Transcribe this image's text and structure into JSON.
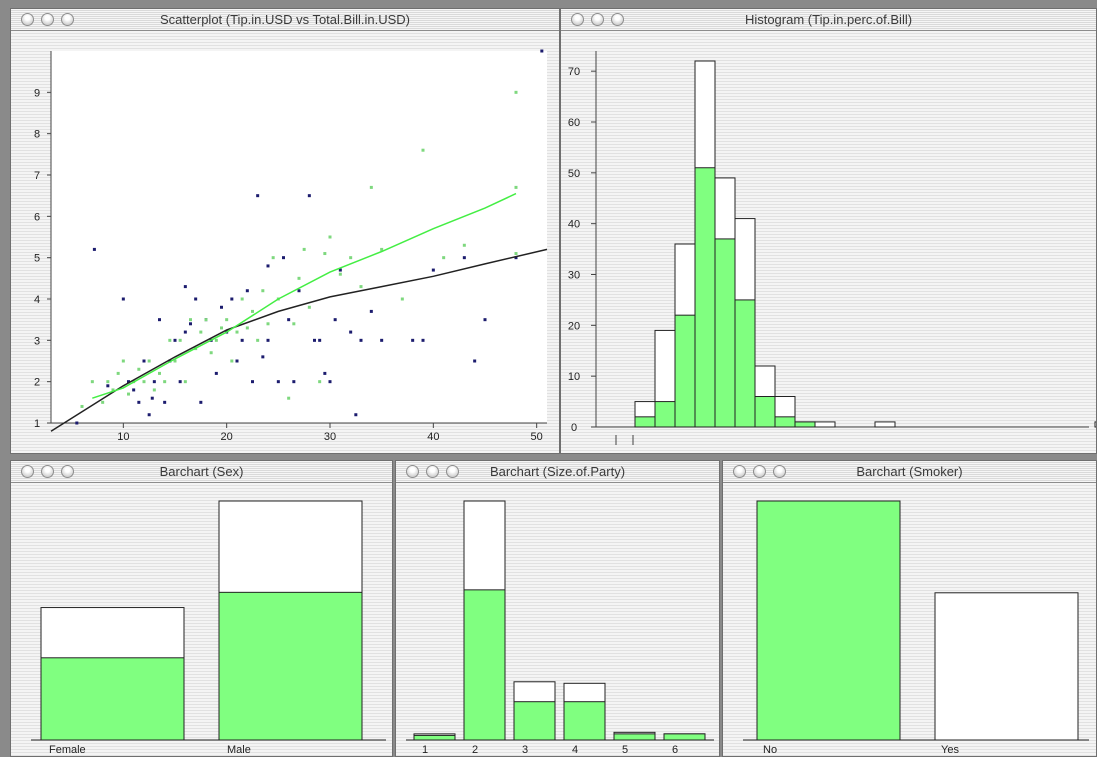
{
  "windows": {
    "scatter": {
      "title": "Scatterplot (Tip.in.USD vs Total.Bill.in.USD)"
    },
    "hist": {
      "title": "Histogram (Tip.in.perc.of.Bill)"
    },
    "sex": {
      "title": "Barchart (Sex)"
    },
    "size": {
      "title": "Barchart (Size.of.Party)"
    },
    "smoker": {
      "title": "Barchart (Smoker)"
    }
  },
  "colors": {
    "highlight": "#80ff80",
    "point_dark": "#1c1c6e",
    "point_light": "#7ed87e",
    "smoother_dark": "#222222",
    "smoother_light": "#44ee44"
  },
  "chart_data": [
    {
      "type": "scatter",
      "title": "Scatterplot (Tip.in.USD vs Total.Bill.in.USD)",
      "xlabel": "",
      "ylabel": "",
      "xlim": [
        3,
        51
      ],
      "ylim": [
        1,
        10
      ],
      "xticks": [
        10,
        20,
        30,
        40,
        50
      ],
      "yticks": [
        1,
        2,
        3,
        4,
        5,
        6,
        7,
        8,
        9
      ],
      "series": [
        {
          "values": [
            [
              5.5,
              1
            ],
            [
              7.2,
              5.2
            ],
            [
              8.5,
              1.9
            ],
            [
              10,
              4
            ],
            [
              10.5,
              2
            ],
            [
              11,
              1.8
            ],
            [
              11.5,
              1.5
            ],
            [
              12,
              2.5
            ],
            [
              12.5,
              1.2
            ],
            [
              12.8,
              1.6
            ],
            [
              13,
              2
            ],
            [
              13.5,
              3.5
            ],
            [
              14,
              1.5
            ],
            [
              14.5,
              2.5
            ],
            [
              15,
              3
            ],
            [
              15.5,
              2
            ],
            [
              16,
              3.2
            ],
            [
              16,
              4.3
            ],
            [
              16.5,
              3.4
            ],
            [
              17,
              4
            ],
            [
              17.5,
              1.5
            ],
            [
              18,
              3.5
            ],
            [
              18.5,
              3
            ],
            [
              19,
              2.2
            ],
            [
              19.5,
              3.8
            ],
            [
              20,
              3.2
            ],
            [
              20.5,
              4
            ],
            [
              21,
              2.5
            ],
            [
              21.5,
              3
            ],
            [
              22,
              4.2
            ],
            [
              22.5,
              2
            ],
            [
              23,
              6.5
            ],
            [
              23.5,
              2.6
            ],
            [
              24,
              3
            ],
            [
              24,
              4.8
            ],
            [
              25,
              2
            ],
            [
              25.5,
              5
            ],
            [
              26,
              3.5
            ],
            [
              26.5,
              2
            ],
            [
              27,
              4.2
            ],
            [
              28,
              6.5
            ],
            [
              28.5,
              3
            ],
            [
              29,
              3
            ],
            [
              29.5,
              2.2
            ],
            [
              30,
              2
            ],
            [
              30.5,
              3.5
            ],
            [
              31,
              4.7
            ],
            [
              32,
              3.2
            ],
            [
              32.5,
              1.2
            ],
            [
              33,
              3
            ],
            [
              34,
              3.7
            ],
            [
              35,
              3
            ],
            [
              38,
              3
            ],
            [
              39,
              3
            ],
            [
              40,
              4.7
            ],
            [
              43,
              5
            ],
            [
              44,
              2.5
            ],
            [
              45,
              3.5
            ],
            [
              48,
              5
            ],
            [
              50.5,
              10
            ]
          ]
        },
        {
          "values": [
            [
              6,
              1.4
            ],
            [
              7,
              2
            ],
            [
              8,
              1.5
            ],
            [
              8.5,
              2
            ],
            [
              9,
              1.8
            ],
            [
              9.5,
              2.2
            ],
            [
              10,
              2.5
            ],
            [
              10.5,
              1.7
            ],
            [
              11,
              2
            ],
            [
              11.5,
              2.3
            ],
            [
              12,
              2
            ],
            [
              12.5,
              2.5
            ],
            [
              13,
              1.8
            ],
            [
              13.5,
              2.2
            ],
            [
              14,
              2
            ],
            [
              14.5,
              3
            ],
            [
              15,
              2.5
            ],
            [
              15.5,
              3
            ],
            [
              16,
              2
            ],
            [
              16.5,
              3.5
            ],
            [
              17,
              2.8
            ],
            [
              17.5,
              3.2
            ],
            [
              18,
              3.5
            ],
            [
              18.5,
              2.7
            ],
            [
              19,
              3
            ],
            [
              19.5,
              3.3
            ],
            [
              20,
              3.5
            ],
            [
              20.5,
              2.5
            ],
            [
              21,
              3.2
            ],
            [
              21.5,
              4
            ],
            [
              22,
              3.3
            ],
            [
              22.5,
              3.7
            ],
            [
              23,
              3
            ],
            [
              23.5,
              4.2
            ],
            [
              24,
              3.4
            ],
            [
              24.5,
              5
            ],
            [
              25,
              4
            ],
            [
              26,
              1.6
            ],
            [
              26.5,
              3.4
            ],
            [
              27,
              4.5
            ],
            [
              27.5,
              5.2
            ],
            [
              28,
              3.8
            ],
            [
              29,
              2
            ],
            [
              29.5,
              5.1
            ],
            [
              30,
              5.5
            ],
            [
              31,
              4.6
            ],
            [
              32,
              5
            ],
            [
              33,
              4.3
            ],
            [
              34,
              6.7
            ],
            [
              35,
              5.2
            ],
            [
              37,
              4
            ],
            [
              39,
              7.6
            ],
            [
              41,
              5
            ],
            [
              43,
              5.3
            ],
            [
              48,
              9
            ],
            [
              48,
              6.7
            ],
            [
              48,
              5.1
            ]
          ]
        }
      ],
      "smoothers": [
        {
          "values": [
            [
              3,
              0.8
            ],
            [
              10,
              1.9
            ],
            [
              15,
              2.6
            ],
            [
              20,
              3.25
            ],
            [
              25,
              3.7
            ],
            [
              30,
              4.05
            ],
            [
              35,
              4.3
            ],
            [
              40,
              4.55
            ],
            [
              45,
              4.85
            ],
            [
              51,
              5.2
            ]
          ]
        },
        {
          "values": [
            [
              7,
              1.6
            ],
            [
              10,
              1.85
            ],
            [
              15,
              2.55
            ],
            [
              20,
              3.2
            ],
            [
              25,
              4.0
            ],
            [
              30,
              4.65
            ],
            [
              35,
              5.15
            ],
            [
              40,
              5.7
            ],
            [
              45,
              6.2
            ],
            [
              48,
              6.55
            ]
          ]
        }
      ]
    },
    {
      "type": "bar",
      "title": "Histogram (Tip.in.perc.of.Bill)",
      "ylim": [
        0,
        72
      ],
      "yticks": [
        0,
        10,
        20,
        30,
        40,
        50,
        60,
        70
      ],
      "bins": 24,
      "series": [
        {
          "values": [
            5,
            19,
            36,
            72,
            49,
            41,
            12,
            6,
            1,
            1,
            0,
            0,
            1,
            0,
            0,
            0,
            0,
            0,
            0,
            0,
            0,
            0,
            0,
            1
          ]
        },
        {
          "values": [
            2,
            5,
            22,
            51,
            37,
            25,
            6,
            2,
            1,
            0,
            0,
            0,
            0,
            0,
            0,
            0,
            0,
            0,
            0,
            0,
            0,
            0,
            0,
            0
          ]
        }
      ]
    },
    {
      "type": "bar",
      "title": "Barchart (Sex)",
      "categories": [
        "Female",
        "Male"
      ],
      "series": [
        {
          "values": [
            87,
            157
          ]
        },
        {
          "values": [
            54,
            97
          ]
        }
      ]
    },
    {
      "type": "bar",
      "title": "Barchart (Size.of.Party)",
      "categories": [
        "1",
        "2",
        "3",
        "4",
        "5",
        "6"
      ],
      "series": [
        {
          "values": [
            4,
            156,
            38,
            37,
            5,
            4
          ]
        },
        {
          "values": [
            3,
            98,
            25,
            25,
            4,
            4
          ]
        }
      ]
    },
    {
      "type": "bar",
      "title": "Barchart (Smoker)",
      "categories": [
        "No",
        "Yes"
      ],
      "series": [
        {
          "values": [
            151,
            93
          ]
        },
        {
          "values": [
            151,
            0
          ]
        }
      ]
    }
  ]
}
